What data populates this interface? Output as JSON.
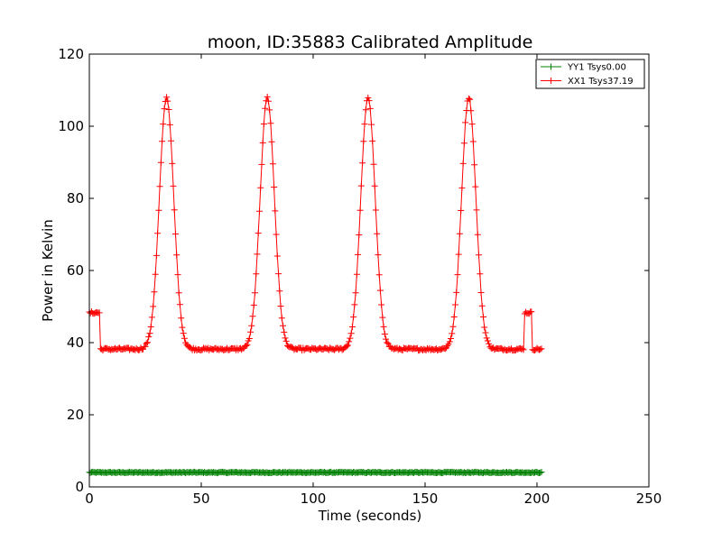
{
  "chart_data": {
    "type": "line",
    "title": "moon, ID:35883 Calibrated Amplitude",
    "xlabel": "Time (seconds)",
    "ylabel": "Power in Kelvin",
    "xlim": [
      0,
      250
    ],
    "ylim": [
      0,
      120
    ],
    "xticks": [
      "0",
      "50",
      "100",
      "150",
      "200",
      "250"
    ],
    "yticks": [
      "0",
      "20",
      "40",
      "60",
      "80",
      "100",
      "120"
    ],
    "grid": false,
    "legend_position": "top-right",
    "series": [
      {
        "name": "YY1 Tsys0.00",
        "color": "#008000",
        "marker": "+",
        "x_start": 0,
        "x_end": 202,
        "x_step": 0.5,
        "baseline": 4.0,
        "noise": 0.15,
        "features": []
      },
      {
        "name": "XX1 Tsys37.19",
        "color": "#ff0000",
        "marker": "+",
        "x_start": 0,
        "x_end": 202,
        "x_step": 0.5,
        "baseline": 38.2,
        "noise": 0.35,
        "features": [
          {
            "kind": "step",
            "from": 0,
            "to": 4.5,
            "value": 48.3
          },
          {
            "kind": "peak",
            "center": 34.5,
            "height": 108,
            "width": 3.2
          },
          {
            "kind": "peak",
            "center": 79.5,
            "height": 108,
            "width": 3.2
          },
          {
            "kind": "peak",
            "center": 124.5,
            "height": 108,
            "width": 3.2
          },
          {
            "kind": "peak",
            "center": 169.5,
            "height": 108,
            "width": 3.2
          },
          {
            "kind": "step",
            "from": 194.5,
            "to": 197.5,
            "value": 48.3
          }
        ]
      }
    ]
  }
}
